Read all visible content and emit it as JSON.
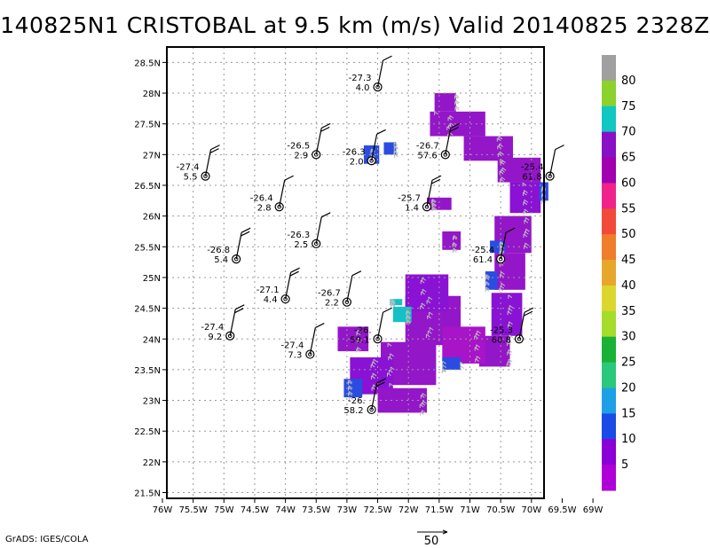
{
  "title": "140825N1  CRISTOBAL at 9.5 km (m/s)  Valid 20140825  2328Z",
  "footer": "GrADS: IGES/COLA",
  "scale_label": "50",
  "axes": {
    "x_ticks": [
      "76W",
      "75.5W",
      "75W",
      "74.5W",
      "74W",
      "73.5W",
      "73W",
      "72.5W",
      "72W",
      "71.5W",
      "71W",
      "70.5W",
      "70W",
      "69.5W",
      "69W"
    ],
    "y_ticks": [
      "28.5N",
      "28N",
      "27.5N",
      "27N",
      "26.5N",
      "26N",
      "25.5N",
      "25N",
      "24.5N",
      "24N",
      "23.5N",
      "23N",
      "22.5N",
      "22N",
      "21.5N"
    ],
    "lon_range": [
      -76,
      -69
    ],
    "lat_range": [
      21.5,
      28.5
    ]
  },
  "colorbar": {
    "levels": [
      "80",
      "75",
      "70",
      "65",
      "60",
      "55",
      "50",
      "45",
      "40",
      "35",
      "30",
      "25",
      "20",
      "15",
      "10",
      "5"
    ],
    "colors": [
      "#a0a0a0",
      "#8cd12c",
      "#11c7c1",
      "#8811c5",
      "#a000b0",
      "#f0238c",
      "#f24a38",
      "#f07d2c",
      "#e6a72a",
      "#dcd62e",
      "#a6dc2a",
      "#18b236",
      "#2ac87a",
      "#1ea0e6",
      "#1a4be6",
      "#8a00d6",
      "#b000d8"
    ]
  },
  "colors": {
    "purple": "#9416c9",
    "violet": "#8a12d4",
    "magenta": "#a814c8",
    "blue": "#2a4ce0",
    "teal": "#14c1c6"
  },
  "stations": [
    {
      "lon": -72.5,
      "lat": 28.1,
      "temp": "-27.3",
      "wind": "4.0"
    },
    {
      "lon": -73.5,
      "lat": 27.0,
      "temp": "-26.5",
      "wind": "2.9"
    },
    {
      "lon": -72.6,
      "lat": 26.9,
      "temp": "-26.3",
      "wind": "2.0"
    },
    {
      "lon": -71.4,
      "lat": 27.0,
      "temp": "-26.7",
      "wind": "57.6"
    },
    {
      "lon": -69.7,
      "lat": 26.65,
      "temp": "-25.4",
      "wind": "61.8"
    },
    {
      "lon": -75.3,
      "lat": 26.65,
      "temp": "-27.4",
      "wind": "5.5"
    },
    {
      "lon": -74.1,
      "lat": 26.15,
      "temp": "-26.4",
      "wind": "2.8"
    },
    {
      "lon": -71.7,
      "lat": 26.15,
      "temp": "-25.7",
      "wind": "1.4"
    },
    {
      "lon": -73.5,
      "lat": 25.55,
      "temp": "-26.3",
      "wind": "2.5"
    },
    {
      "lon": -74.8,
      "lat": 25.3,
      "temp": "-26.8",
      "wind": "5.4"
    },
    {
      "lon": -70.5,
      "lat": 25.3,
      "temp": "-25.4",
      "wind": "61.4"
    },
    {
      "lon": -74.0,
      "lat": 24.65,
      "temp": "-27.1",
      "wind": "4.4"
    },
    {
      "lon": -73.0,
      "lat": 24.6,
      "temp": "-26.7",
      "wind": "2.2"
    },
    {
      "lon": -74.9,
      "lat": 24.05,
      "temp": "-27.4",
      "wind": "9.2"
    },
    {
      "lon": -72.5,
      "lat": 24.0,
      "temp": "-26.",
      "wind": "59.1"
    },
    {
      "lon": -70.2,
      "lat": 24.0,
      "temp": "-25.3",
      "wind": "60.8"
    },
    {
      "lon": -73.6,
      "lat": 23.75,
      "temp": "-27.4",
      "wind": "7.3"
    },
    {
      "lon": -72.6,
      "lat": 22.85,
      "temp": "-26.",
      "wind": "58.2"
    }
  ]
}
